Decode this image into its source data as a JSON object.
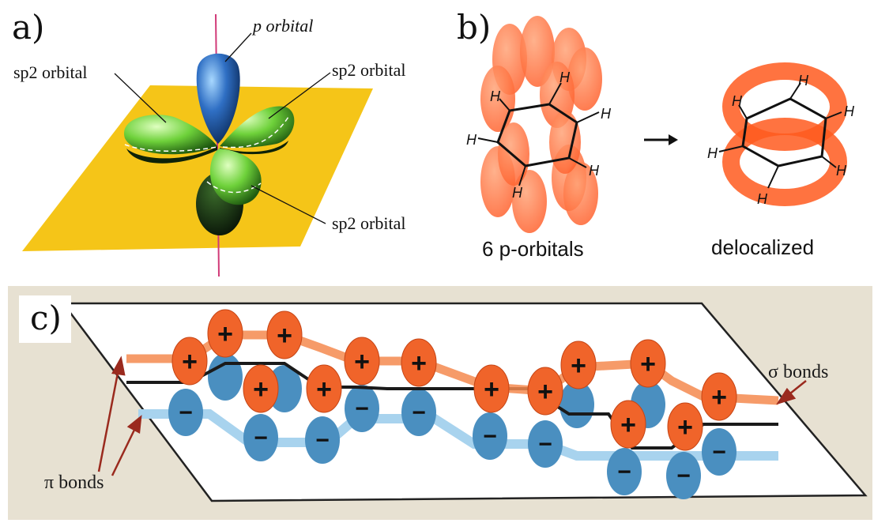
{
  "panel_a": {
    "label": "a)",
    "p_orbital": "p orbital",
    "sp2_left": "sp2 orbital",
    "sp2_right": "sp2 orbital",
    "sp2_bottom": "sp2 orbital",
    "colors": {
      "plane": "#f5c518",
      "p_lobe": "#2f6fc4",
      "sp2_lobe": "#6ed13a",
      "axis": "#d13a78"
    }
  },
  "panel_b": {
    "label": "b)",
    "left_caption": "6 p-orbitals",
    "right_caption": "delocalized",
    "atom_label": "H",
    "colors": {
      "orbital": "#ff5a1f"
    }
  },
  "panel_c": {
    "label": "c)",
    "sigma_label": "σ bonds",
    "pi_label": "π bonds",
    "plus_sign": "+",
    "minus_sign": "−",
    "colors": {
      "positive": "#f0642a",
      "negative": "#4a8fc0",
      "background": "#e7e1d2"
    }
  }
}
